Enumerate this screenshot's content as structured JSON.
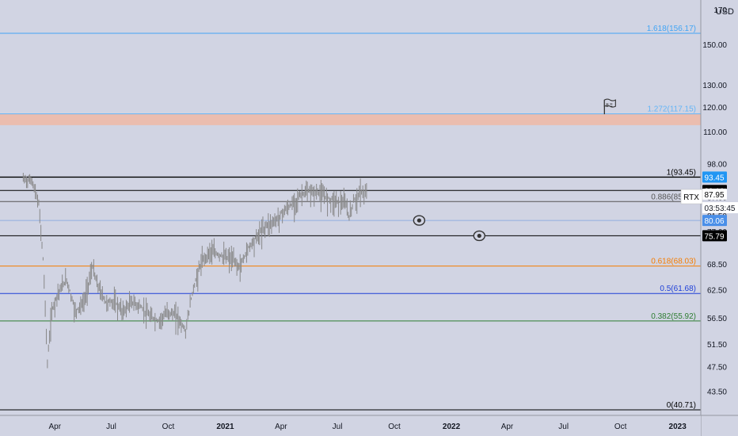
{
  "chart_data": {
    "type": "line",
    "symbol": "RTX",
    "currency": "USD",
    "countdown": "03:53:45",
    "last_price": 87.95,
    "x_tick_labels": [
      "Apr",
      "Jul",
      "Oct",
      "2021",
      "Apr",
      "Jul",
      "Oct",
      "2022",
      "Apr",
      "Jul",
      "Oct",
      "2023"
    ],
    "bold_x_ticks": [
      "2021",
      "2022",
      "2023"
    ],
    "y_axis": {
      "scale": "log",
      "range": [
        40.71,
        170
      ],
      "tick_labels": [
        "170",
        "150.00",
        "130.00",
        "120.00",
        "110.00",
        "98.00",
        "87.00",
        "81.50",
        "77.00",
        "68.50",
        "62.50",
        "56.50",
        "51.50",
        "47.50",
        "43.50"
      ]
    },
    "fib_levels": [
      {
        "label": "1.618(156.17)",
        "price": 156.17,
        "color": "#42a5f5"
      },
      {
        "label": "1.272(117.15)",
        "price": 117.15,
        "color": "#64b5f6"
      },
      {
        "label": "1(93.45)",
        "price": 93.45,
        "color": "#000000"
      },
      {
        "label": "0.886(85.63)",
        "price": 85.63,
        "color": "#555555"
      },
      {
        "label": "0.618(68.03)",
        "price": 68.03,
        "color": "#f57c00"
      },
      {
        "label": "0.5(61.68)",
        "price": 61.68,
        "color": "#1e3fd8"
      },
      {
        "label": "0.382(55.92)",
        "price": 55.92,
        "color": "#2e7d32"
      },
      {
        "label": "0(40.71)",
        "price": 40.71,
        "color": "#000000"
      }
    ],
    "zone": {
      "from": 112.5,
      "to": 117.15,
      "color": "#f0b9a6"
    },
    "horizontal_lines": [
      {
        "price": 89.1,
        "color": "#000000"
      },
      {
        "price": 80.06,
        "color": "#90aee0"
      },
      {
        "price": 75.79,
        "color": "#000000"
      }
    ],
    "price_tags": [
      {
        "text": "93.45",
        "price": 93.45,
        "bg": "#2196f3",
        "fg": "#ffffff"
      },
      {
        "text": "89.10",
        "price": 89.1,
        "bg": "#000000",
        "fg": "#ffffff"
      },
      {
        "text": "87.95",
        "price": 87.95,
        "bg": "#ffffff",
        "fg": "#000000"
      },
      {
        "text": "80.06",
        "price": 80.06,
        "bg": "#4a8fe8",
        "fg": "#ffffff"
      },
      {
        "text": "75.79",
        "price": 75.79,
        "bg": "#000000",
        "fg": "#ffffff"
      }
    ],
    "price_series": {
      "x": [
        "2020-02-10",
        "2020-02-24",
        "2020-03-06",
        "2020-03-13",
        "2020-03-20",
        "2020-03-27",
        "2020-04-06",
        "2020-04-20",
        "2020-05-04",
        "2020-05-18",
        "2020-06-01",
        "2020-06-08",
        "2020-06-22",
        "2020-07-06",
        "2020-07-20",
        "2020-08-03",
        "2020-08-17",
        "2020-09-01",
        "2020-09-15",
        "2020-10-01",
        "2020-10-15",
        "2020-10-29",
        "2020-11-09",
        "2020-11-23",
        "2020-12-07",
        "2020-12-21",
        "2021-01-11",
        "2021-01-25",
        "2021-02-08",
        "2021-02-22",
        "2021-03-08",
        "2021-03-22",
        "2021-04-05",
        "2021-04-19",
        "2021-05-03",
        "2021-05-17",
        "2021-06-01",
        "2021-06-15",
        "2021-07-01",
        "2021-07-15",
        "2021-07-20",
        "2021-07-27",
        "2021-08-09",
        "2021-08-17"
      ],
      "y": [
        93.0,
        92.5,
        85.0,
        70.0,
        48.0,
        58.0,
        62.0,
        65.0,
        58.0,
        60.0,
        68.0,
        64.0,
        60.0,
        60.0,
        58.0,
        60.0,
        59.0,
        57.0,
        56.0,
        58.0,
        57.0,
        54.0,
        62.0,
        69.0,
        72.0,
        71.0,
        70.0,
        68.0,
        73.0,
        76.0,
        79.0,
        80.0,
        83.0,
        85.0,
        88.0,
        89.0,
        88.5,
        87.0,
        86.0,
        85.0,
        81.0,
        86.0,
        89.0,
        88.0
      ],
      "color": "#888888"
    },
    "annotations": [
      {
        "type": "eye",
        "date": "2021-11-10",
        "price": 80.06
      },
      {
        "type": "eye",
        "date": "2022-02-15",
        "price": 75.79
      },
      {
        "type": "flag",
        "date": "2022-09-05",
        "price": 120.0
      }
    ]
  }
}
